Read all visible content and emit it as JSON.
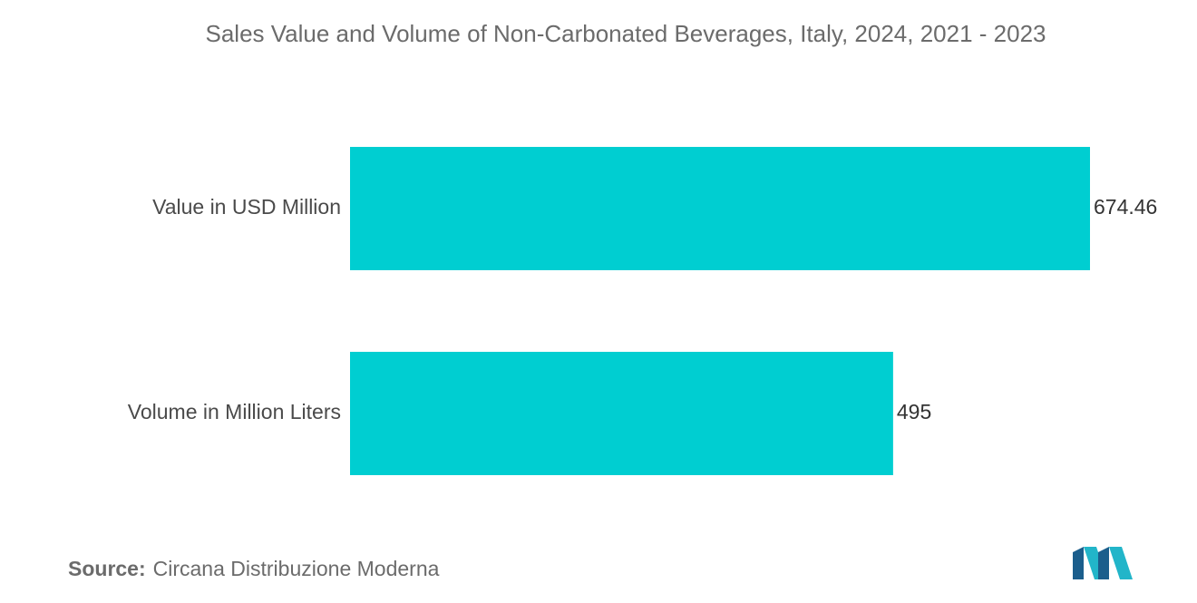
{
  "chart_data": {
    "type": "bar",
    "orientation": "horizontal",
    "title": "Sales Value and Volume of Non-Carbonated Beverages, Italy, 2024, 2021 - 2023",
    "categories": [
      "Value in USD Million",
      "Volume in Million Liters"
    ],
    "values": [
      674.46,
      495
    ],
    "value_labels": [
      "674.46",
      "495"
    ],
    "xlim": [
      0,
      674.46
    ],
    "grid": false,
    "legend": "none",
    "bar_color": "#00CED1"
  },
  "source": {
    "key": "Source:",
    "text": "Circana Distribuzione Moderna"
  },
  "logo": {
    "icon": "mordor-intelligence-logo",
    "colors": [
      "#1B5E8C",
      "#22B5C9"
    ]
  }
}
